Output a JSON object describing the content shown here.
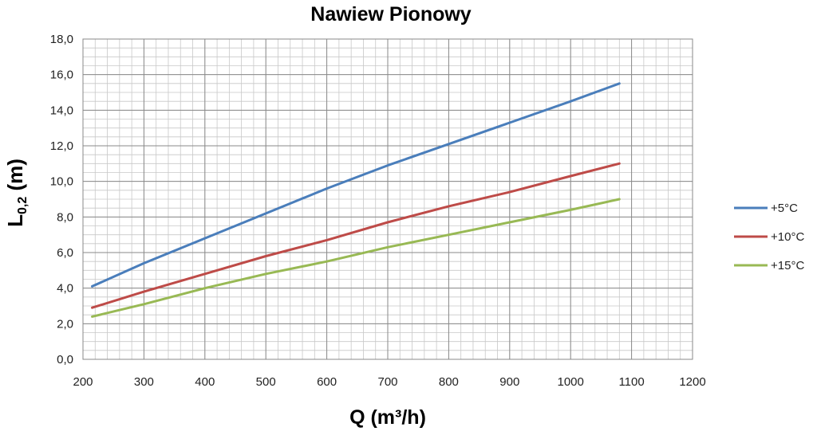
{
  "chart_data": {
    "type": "line",
    "title": "Nawiew Pionowy",
    "xlabel": "Q (m³/h)",
    "ylabel_main": "L",
    "ylabel_sub": "0,2",
    "ylabel_unit": " (m)",
    "xlim": [
      200,
      1200
    ],
    "ylim": [
      0,
      18
    ],
    "x_ticks": [
      200,
      300,
      400,
      500,
      600,
      700,
      800,
      900,
      1000,
      1100,
      1200
    ],
    "y_ticks": [
      "0,0",
      "2,0",
      "4,0",
      "6,0",
      "8,0",
      "10,0",
      "12,0",
      "14,0",
      "16,0",
      "18,0"
    ],
    "grid": true,
    "legend_position": "right",
    "series": [
      {
        "name": "+5°C",
        "color": "#4a7ebb",
        "x": [
          215,
          300,
          400,
          500,
          600,
          700,
          800,
          900,
          1000,
          1080
        ],
        "y": [
          4.1,
          5.4,
          6.8,
          8.2,
          9.6,
          10.9,
          12.1,
          13.3,
          14.5,
          15.5
        ]
      },
      {
        "name": "+10°C",
        "color": "#be4b48",
        "x": [
          215,
          300,
          400,
          500,
          600,
          700,
          800,
          900,
          1000,
          1080
        ],
        "y": [
          2.9,
          3.8,
          4.8,
          5.8,
          6.7,
          7.7,
          8.6,
          9.4,
          10.3,
          11.0
        ]
      },
      {
        "name": "+15°C",
        "color": "#98b954",
        "x": [
          215,
          300,
          400,
          500,
          600,
          700,
          800,
          900,
          1000,
          1080
        ],
        "y": [
          2.4,
          3.1,
          4.0,
          4.8,
          5.5,
          6.3,
          7.0,
          7.7,
          8.4,
          9.0
        ]
      }
    ]
  }
}
